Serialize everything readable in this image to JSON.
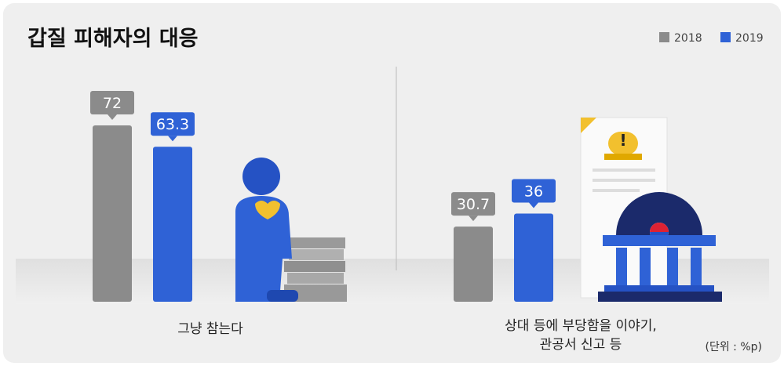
{
  "chart_data": {
    "type": "bar",
    "title": "갑질 피해자의 대응",
    "categories": [
      "그냥 참는다",
      "상대 등에 부당함을 이야기,\n관공서 신고 등"
    ],
    "series": [
      {
        "name": "2018",
        "color": "#8b8b8b",
        "values": [
          72,
          30.7
        ]
      },
      {
        "name": "2019",
        "color": "#2f62d6",
        "values": [
          63.3,
          36
        ]
      }
    ],
    "unit_note": "(단위 : %p)"
  }
}
